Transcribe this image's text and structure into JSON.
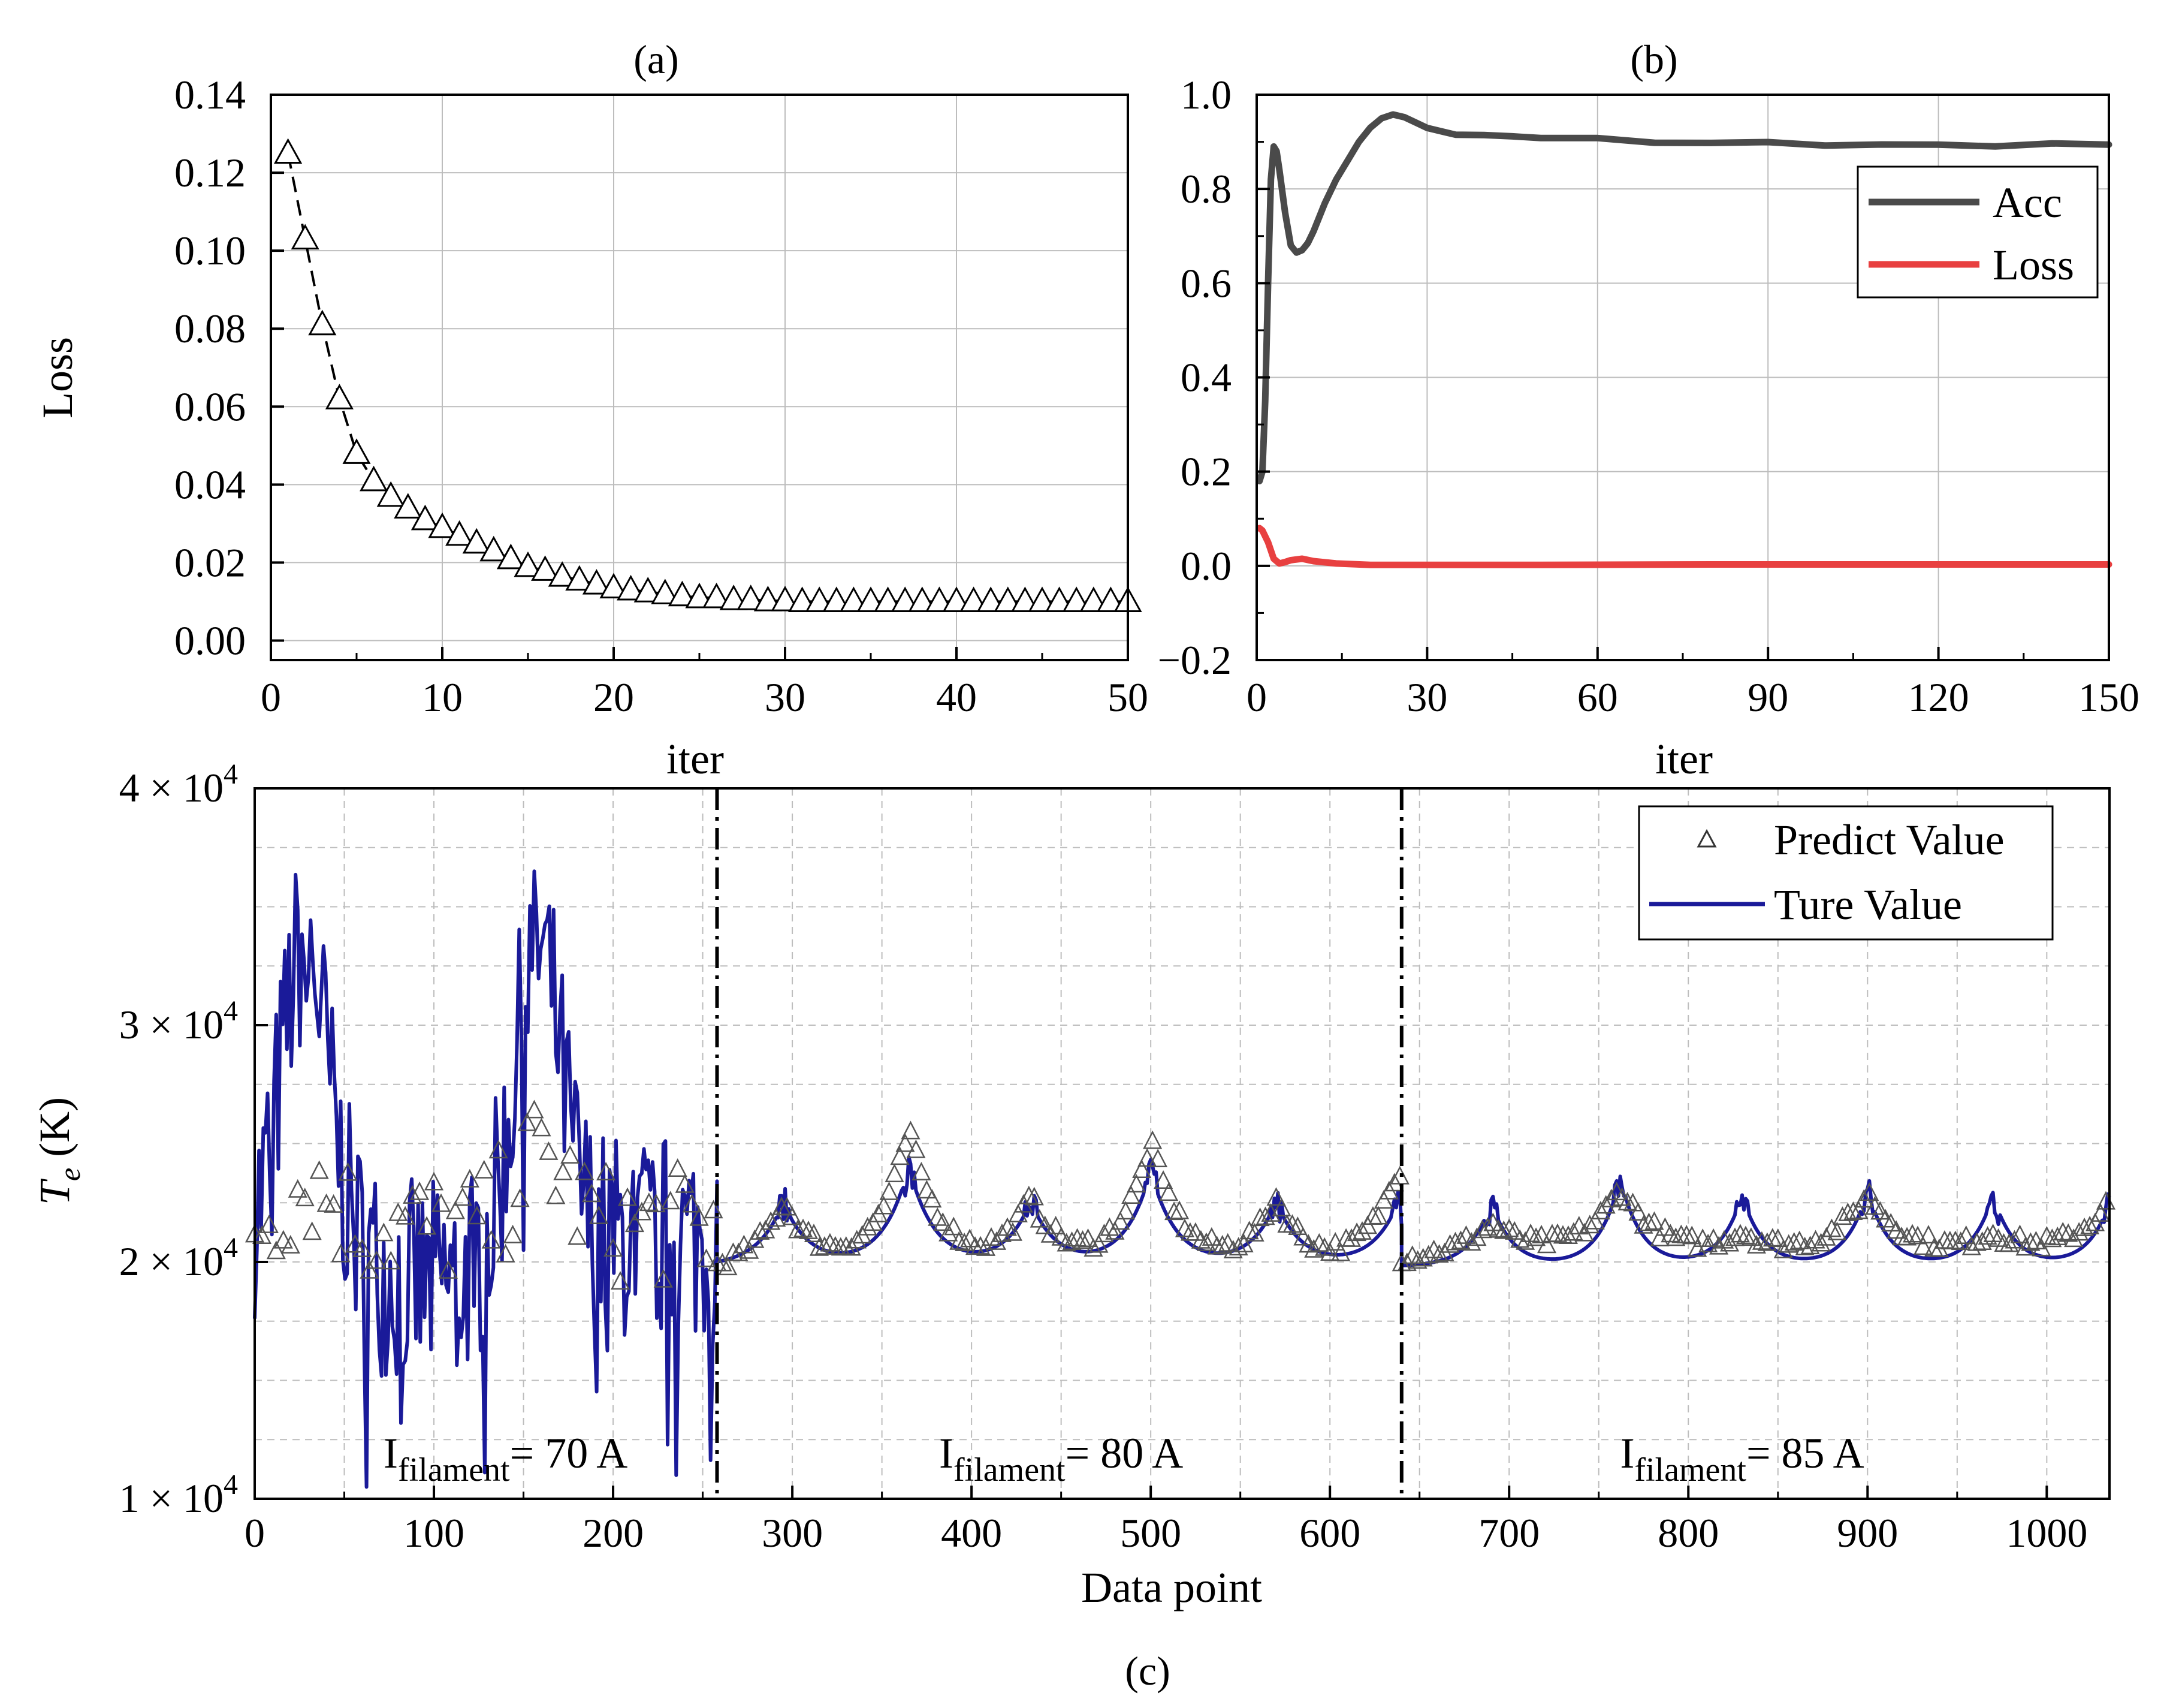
{
  "figure": {
    "caption_c": "(c)"
  },
  "chart_data": [
    {
      "id": "a",
      "type": "line",
      "title": "(a)",
      "xlabel": "iter",
      "ylabel": "Loss",
      "xlim": [
        0,
        50
      ],
      "ylim": [
        -0.005,
        0.14
      ],
      "xticks": [
        "0",
        "10",
        "20",
        "30",
        "40",
        "50"
      ],
      "yticks": [
        "0.00",
        "0.02",
        "0.04",
        "0.06",
        "0.08",
        "0.10",
        "0.12",
        "0.14"
      ],
      "xtick_values": [
        0,
        10,
        20,
        30,
        40,
        50
      ],
      "ytick_values": [
        0,
        0.02,
        0.04,
        0.06,
        0.08,
        0.1,
        0.12,
        0.14
      ],
      "grid": true,
      "series": [
        {
          "name": "Loss",
          "style": "dashed line with open triangle markers",
          "color": "#000000",
          "x": [
            1,
            2,
            3,
            4,
            5,
            6,
            7,
            8,
            9,
            10,
            11,
            12,
            13,
            14,
            15,
            16,
            17,
            18,
            19,
            20,
            21,
            22,
            23,
            24,
            25,
            26,
            27,
            28,
            29,
            30,
            31,
            32,
            33,
            34,
            35,
            36,
            37,
            38,
            39,
            40,
            41,
            42,
            43,
            44,
            45,
            46,
            47,
            48,
            49,
            50
          ],
          "values": [
            0.125,
            0.103,
            0.081,
            0.062,
            0.048,
            0.041,
            0.037,
            0.034,
            0.031,
            0.029,
            0.027,
            0.025,
            0.023,
            0.021,
            0.019,
            0.018,
            0.0165,
            0.0155,
            0.0145,
            0.0135,
            0.013,
            0.0125,
            0.012,
            0.0115,
            0.011,
            0.011,
            0.0105,
            0.0105,
            0.0102,
            0.0102,
            0.01,
            0.01,
            0.01,
            0.01,
            0.01,
            0.01,
            0.01,
            0.01,
            0.01,
            0.01,
            0.01,
            0.01,
            0.01,
            0.01,
            0.01,
            0.01,
            0.01,
            0.01,
            0.01,
            0.01
          ]
        }
      ]
    },
    {
      "id": "b",
      "type": "line",
      "title": "(b)",
      "xlabel": "iter",
      "ylabel": "",
      "xlim": [
        0,
        150
      ],
      "ylim": [
        -0.2,
        1.0
      ],
      "xticks": [
        "0",
        "30",
        "60",
        "90",
        "120",
        "150"
      ],
      "yticks": [
        "−0.2",
        "0.0",
        "0.2",
        "0.4",
        "0.6",
        "0.8",
        "1.0"
      ],
      "xtick_values": [
        0,
        30,
        60,
        90,
        120,
        150
      ],
      "ytick_values": [
        -0.2,
        0,
        0.2,
        0.4,
        0.6,
        0.8,
        1.0
      ],
      "grid": true,
      "legend_position": "top-right",
      "series": [
        {
          "name": "Acc",
          "color": "#4a4a4a",
          "x": [
            0.5,
            1,
            1.5,
            2,
            2.5,
            3,
            3.5,
            4,
            5,
            6,
            7,
            8,
            9,
            10,
            12,
            14,
            16,
            18,
            20,
            22,
            24,
            26,
            28,
            30,
            35,
            40,
            45,
            50,
            60,
            70,
            80,
            90,
            100,
            110,
            120,
            130,
            140,
            150
          ],
          "values": [
            0.18,
            0.2,
            0.35,
            0.6,
            0.82,
            0.89,
            0.88,
            0.84,
            0.75,
            0.68,
            0.665,
            0.67,
            0.685,
            0.71,
            0.77,
            0.82,
            0.86,
            0.9,
            0.93,
            0.95,
            0.958,
            0.955,
            0.94,
            0.928,
            0.918,
            0.912,
            0.912,
            0.91,
            0.905,
            0.9,
            0.898,
            0.897,
            0.895,
            0.893,
            0.893,
            0.893,
            0.894,
            0.895
          ]
        },
        {
          "name": "Loss",
          "color": "#e84040",
          "x": [
            0.5,
            1,
            2,
            3,
            4,
            5,
            6,
            8,
            10,
            14,
            20,
            30,
            50,
            80,
            110,
            150
          ],
          "values": [
            0.08,
            0.075,
            0.05,
            0.015,
            0.005,
            0.008,
            0.012,
            0.015,
            0.01,
            0.005,
            0.002,
            0.002,
            0.002,
            0.003,
            0.003,
            0.003
          ]
        }
      ]
    },
    {
      "id": "c",
      "type": "line",
      "xlabel": "Data point",
      "ylabel_italic": "T",
      "ylabel_sub": "e",
      "ylabel_unit": " (K)",
      "xlim": [
        0,
        1035
      ],
      "ylim": [
        10000,
        40000
      ],
      "xticks": [
        "0",
        "100",
        "200",
        "300",
        "400",
        "500",
        "600",
        "700",
        "800",
        "900",
        "1000"
      ],
      "xtick_values": [
        0,
        100,
        200,
        300,
        400,
        500,
        600,
        700,
        800,
        900,
        1000
      ],
      "ytick_values": [
        10000,
        20000,
        30000,
        40000
      ],
      "ytick_mantissa": [
        "1",
        "2",
        "3",
        "4"
      ],
      "ytick_times": " × 10",
      "ytick_exponent": "4",
      "grid": "dashed",
      "legend_position": "top-right",
      "dividers_x": [
        258,
        640
      ],
      "annotations": [
        {
          "main": "I",
          "sub": "filament",
          "rest": "= 70 A",
          "x": 140
        },
        {
          "main": "I",
          "sub": "filament",
          "rest": "= 80 A",
          "x": 450
        },
        {
          "main": "I",
          "sub": "filament",
          "rest": "= 85 A",
          "x": 830
        }
      ],
      "series": [
        {
          "name": "Predict Value",
          "style": "open triangle markers",
          "color": "#555555",
          "segments": [
            {
              "x_start": 0,
              "x_end": 258,
              "level_K": 21500,
              "noise_K": 3000
            },
            {
              "x_start": 258,
              "x_end": 640,
              "base_K": 19500,
              "peaks": [
                [
                  295,
                  22500
                ],
                [
                  365,
                  25500
                ],
                [
                  433,
                  22500
                ],
                [
                  500,
                  25000
                ],
                [
                  570,
                  22500
                ],
                [
                  638,
                  24000
                ]
              ],
              "width": 32
            },
            {
              "x_start": 640,
              "x_end": 1035,
              "base_K": 20000,
              "peaks": [
                [
                  690,
                  21500
                ],
                [
                  762,
                  23000
                ],
                [
                  830,
                  21000
                ],
                [
                  900,
                  22800
                ],
                [
                  970,
                  21000
                ],
                [
                  1035,
                  22500
                ]
              ],
              "width": 40
            }
          ]
        },
        {
          "name": "Ture Value",
          "color": "#1a1a99",
          "segments": [
            {
              "x_start": 0,
              "x_end": 258,
              "note": "noisy region with bursts to ~36500 K near points 25 and 155, dips to ~11000 K"
            },
            {
              "x_start": 258,
              "x_end": 640,
              "base_K": 19800,
              "peaks": [
                [
                  295,
                  22500
                ],
                [
                  365,
                  24000
                ],
                [
                  433,
                  22500
                ],
                [
                  500,
                  23800
                ],
                [
                  570,
                  22500
                ],
                [
                  638,
                  22500
                ]
              ],
              "width": 26
            },
            {
              "x_start": 640,
              "x_end": 1035,
              "base_K": 19800,
              "peaks": [
                [
                  690,
                  22500
                ],
                [
                  762,
                  23500
                ],
                [
                  830,
                  22800
                ],
                [
                  900,
                  23000
                ],
                [
                  970,
                  22800
                ],
                [
                  1035,
                  22500
                ]
              ],
              "width": 22
            }
          ]
        }
      ]
    }
  ]
}
